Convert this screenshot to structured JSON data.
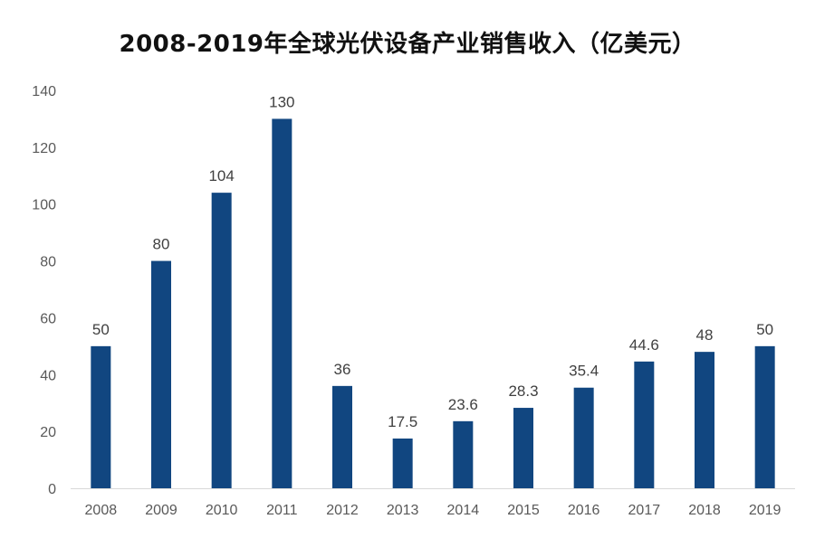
{
  "chart_data": {
    "type": "bar",
    "title": "2008-2019年全球光伏设备产业销售收入（亿美元）",
    "xlabel": "",
    "ylabel": "",
    "categories": [
      "2008",
      "2009",
      "2010",
      "2011",
      "2012",
      "2013",
      "2014",
      "2015",
      "2016",
      "2017",
      "2018",
      "2019"
    ],
    "values": [
      50,
      80,
      104,
      130,
      36,
      17.5,
      23.6,
      28.3,
      35.4,
      44.6,
      48,
      50
    ],
    "data_labels": [
      "50",
      "80",
      "104",
      "130",
      "36",
      "17.5",
      "23.6",
      "28.3",
      "35.4",
      "44.6",
      "48",
      "50"
    ],
    "ylim": [
      0,
      140
    ],
    "yticks": [
      0,
      20,
      40,
      60,
      80,
      100,
      120,
      140
    ],
    "grid": false,
    "legend": "none",
    "bar_color": "#114680",
    "axis_color": "#d9d9d9"
  }
}
